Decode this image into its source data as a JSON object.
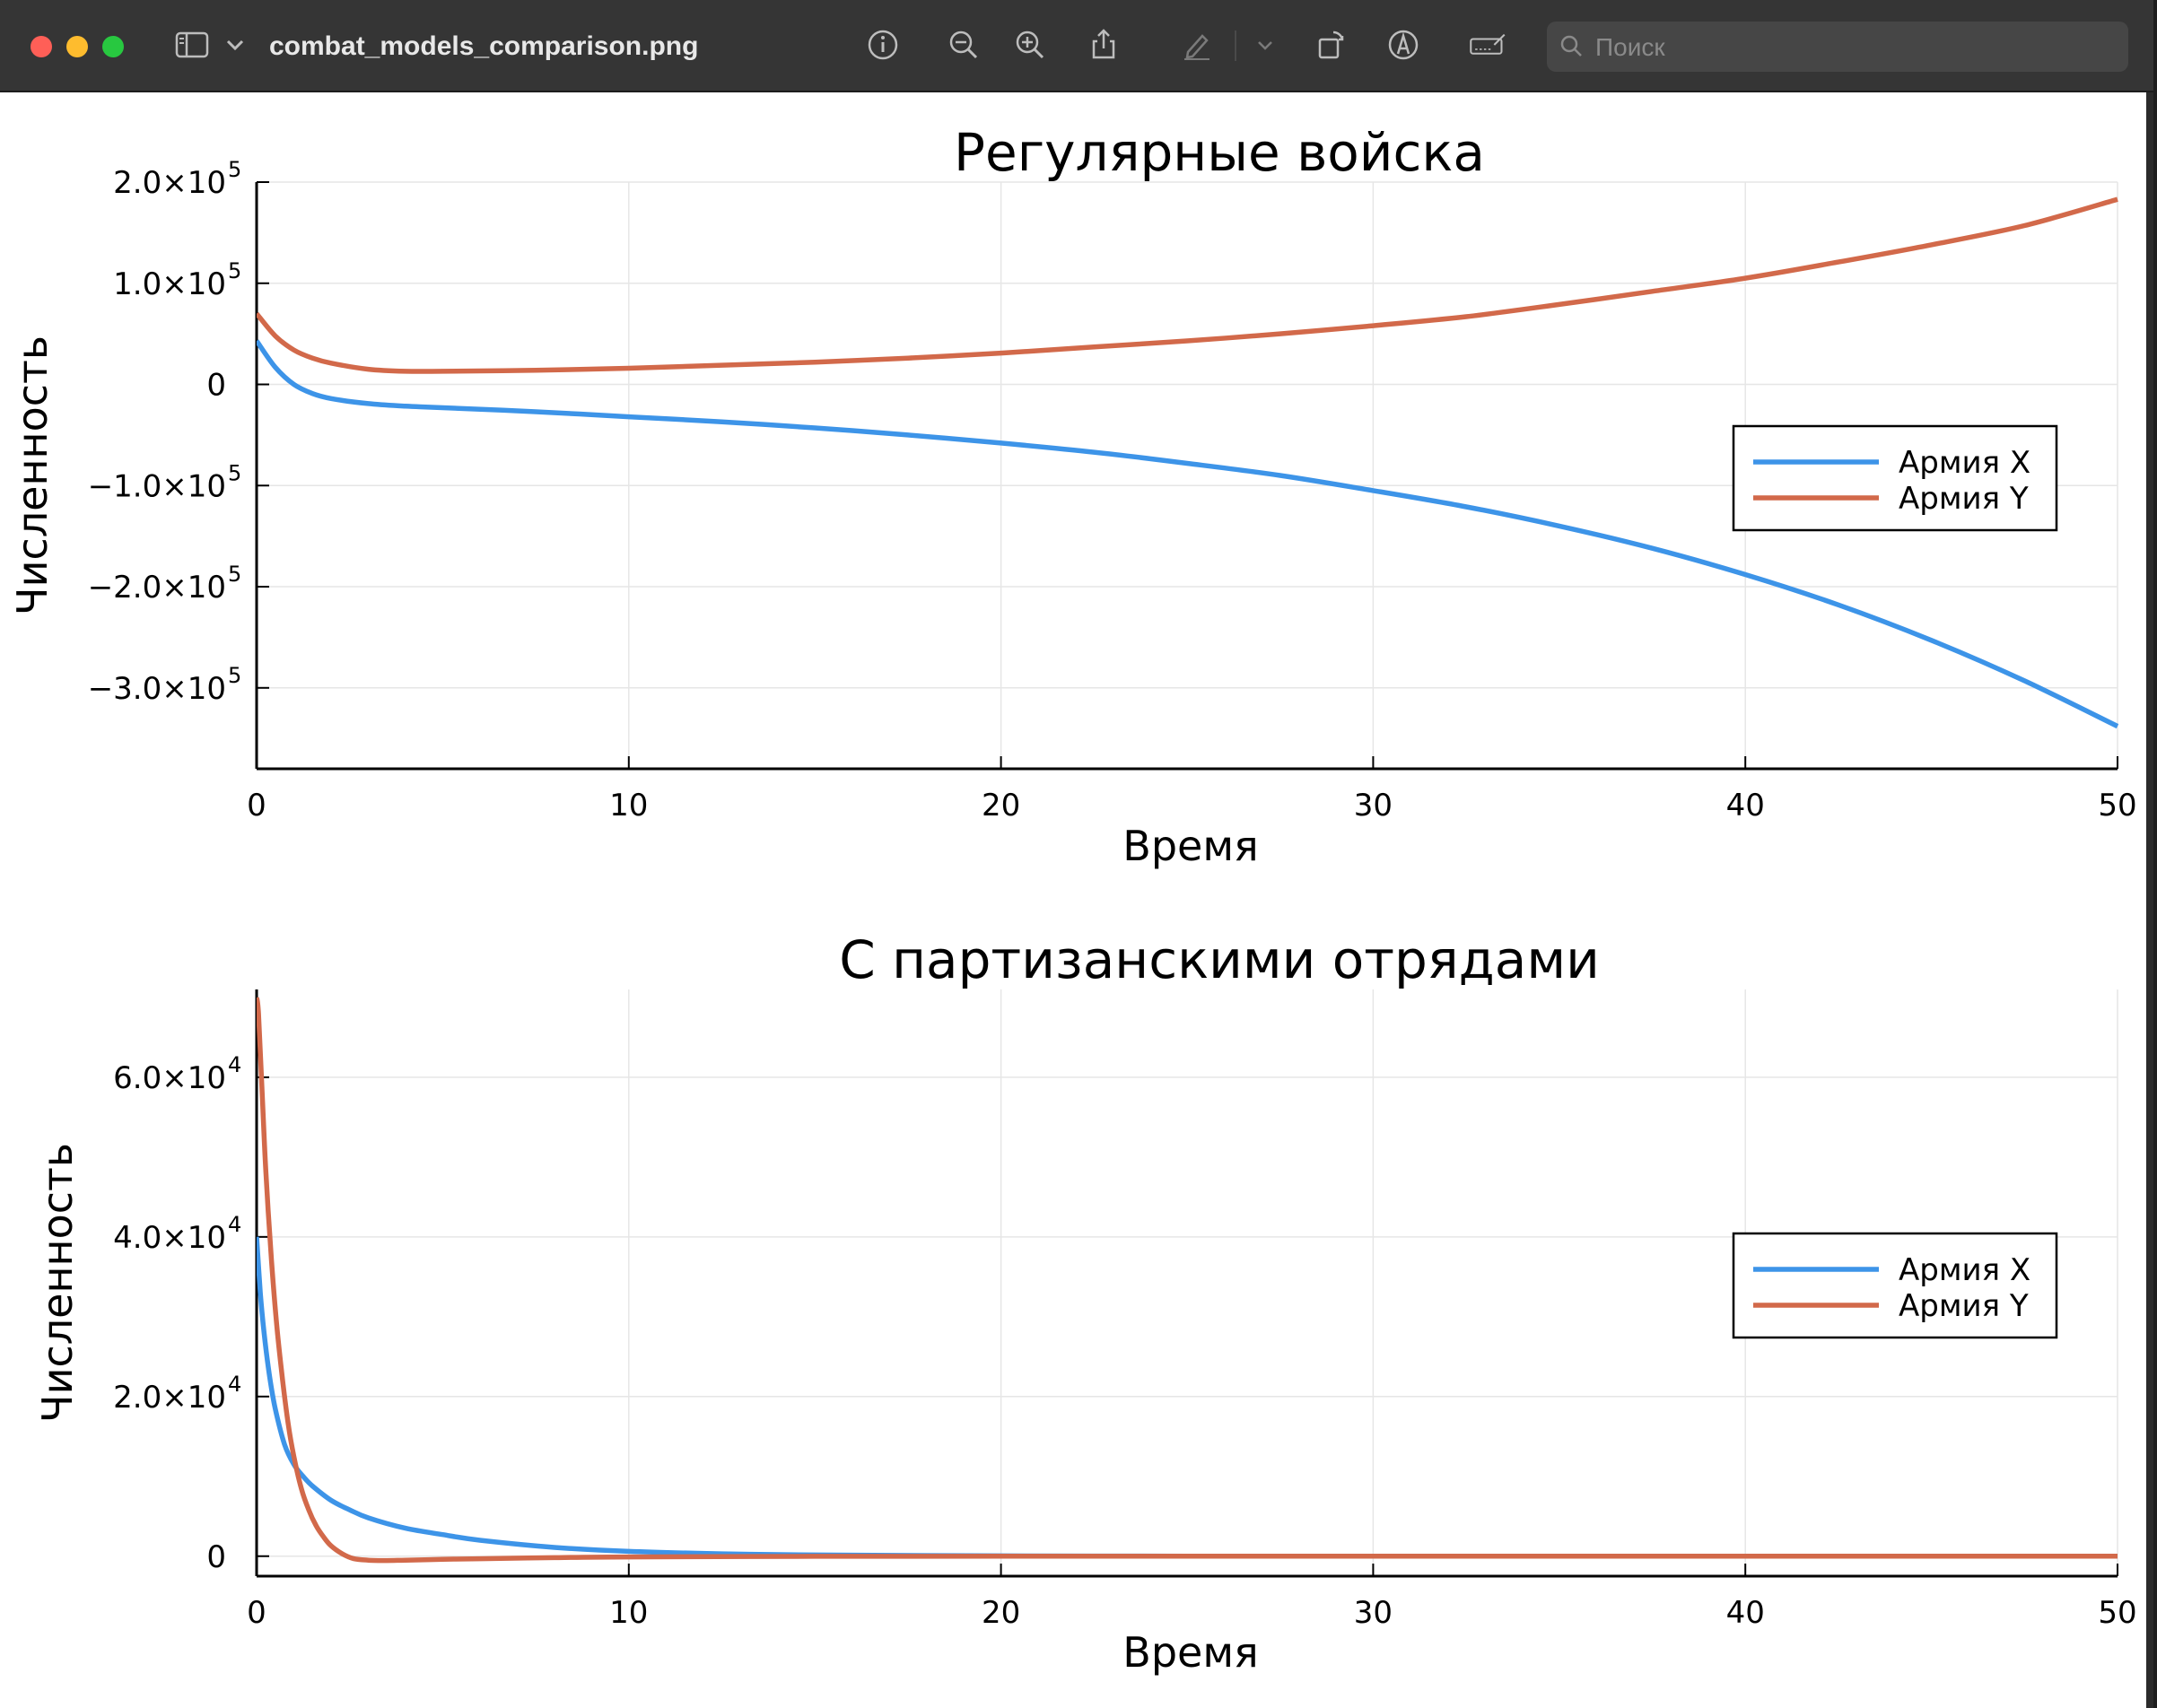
{
  "window": {
    "filename": "combat_models_comparison.png",
    "search_placeholder": "Поиск"
  },
  "toolbar": {
    "icons": [
      "sidebar-icon",
      "chevron-down-icon",
      "info-icon",
      "zoom-out-icon",
      "zoom-in-icon",
      "share-icon",
      "markup-pen-icon",
      "chevron-down-icon",
      "rotate-icon",
      "markup-circle-icon",
      "signature-icon",
      "search-icon"
    ]
  },
  "colors": {
    "army_x": "#3d94e8",
    "army_y": "#d2694a",
    "titlebar": "#353535"
  },
  "chart_data": [
    {
      "type": "line",
      "title": "Регулярные войска",
      "xlabel": "Время",
      "ylabel": "Численность",
      "xlim": [
        0,
        50
      ],
      "ylim": [
        -380000,
        200000
      ],
      "xticks": [
        0,
        10,
        20,
        30,
        40,
        50
      ],
      "xtick_labels": [
        "0",
        "10",
        "20",
        "30",
        "40",
        "50"
      ],
      "yticks": [
        200000,
        100000,
        0,
        -100000,
        -200000,
        -300000
      ],
      "ytick_labels": [
        {
          "mant": "2.0×10",
          "exp": "5"
        },
        {
          "mant": "1.0×10",
          "exp": "5"
        },
        {
          "mant": "0",
          "exp": ""
        },
        {
          "mant": "−1.0×10",
          "exp": "5"
        },
        {
          "mant": "−2.0×10",
          "exp": "5"
        },
        {
          "mant": "−3.0×10",
          "exp": "5"
        }
      ],
      "grid": true,
      "legend_position": "right",
      "series": [
        {
          "name": "Армия X",
          "x": [
            0,
            0.5,
            1,
            1.5,
            2,
            3,
            4,
            5,
            7.5,
            10,
            12.5,
            15,
            17.5,
            20,
            22.5,
            25,
            27.5,
            30,
            32.5,
            35,
            37.5,
            40,
            42.5,
            45,
            47.5,
            50
          ],
          "y": [
            43000,
            17000,
            0,
            -9000,
            -14000,
            -19000,
            -21500,
            -23000,
            -27000,
            -32000,
            -37000,
            -43000,
            -50000,
            -58000,
            -67000,
            -78000,
            -90000,
            -105000,
            -121000,
            -140000,
            -162000,
            -188000,
            -218000,
            -253000,
            -293000,
            -338000
          ]
        },
        {
          "name": "Армия Y",
          "x": [
            0,
            0.5,
            1,
            1.5,
            2,
            3,
            4,
            5,
            7.5,
            10,
            12.5,
            15,
            17.5,
            20,
            22.5,
            25,
            27.5,
            30,
            32.5,
            35,
            37.5,
            40,
            42.5,
            45,
            47.5,
            50
          ],
          "y": [
            70000,
            48000,
            34000,
            26000,
            21000,
            15000,
            13000,
            13000,
            14000,
            16000,
            19000,
            22000,
            26000,
            31000,
            37000,
            43000,
            50000,
            58000,
            67000,
            79000,
            92000,
            105000,
            121000,
            138000,
            157000,
            183000
          ]
        }
      ]
    },
    {
      "type": "line",
      "title": "С партизанскими отрядами",
      "xlabel": "Время",
      "ylabel": "Численность",
      "xlim": [
        0,
        50
      ],
      "ylim": [
        -2500,
        71000
      ],
      "xticks": [
        0,
        10,
        20,
        30,
        40,
        50
      ],
      "xtick_labels": [
        "0",
        "10",
        "20",
        "30",
        "40",
        "50"
      ],
      "yticks": [
        60000,
        40000,
        20000,
        0
      ],
      "ytick_labels": [
        {
          "mant": "6.0×10",
          "exp": "4"
        },
        {
          "mant": "4.0×10",
          "exp": "4"
        },
        {
          "mant": "2.0×10",
          "exp": "4"
        },
        {
          "mant": "0",
          "exp": ""
        }
      ],
      "grid": true,
      "legend_position": "right",
      "series": [
        {
          "name": "Армия X",
          "x": [
            0,
            0.1,
            0.2,
            0.35,
            0.5,
            0.75,
            1,
            1.25,
            1.5,
            2,
            2.5,
            3,
            4,
            5,
            6,
            8,
            10,
            12.5,
            15,
            20,
            25,
            30,
            40,
            50
          ],
          "y": [
            40000,
            33000,
            28000,
            22500,
            18500,
            14000,
            11500,
            10000,
            8800,
            7000,
            5800,
            4800,
            3500,
            2700,
            2000,
            1100,
            600,
            300,
            150,
            40,
            10,
            0,
            0,
            0
          ],
          "series_color": "army_x"
        },
        {
          "name": "Армия Y",
          "x": [
            0,
            0.05,
            0.15,
            0.25,
            0.4,
            0.55,
            0.7,
            0.85,
            1,
            1.2,
            1.4,
            1.6,
            1.8,
            2,
            2.3,
            2.6,
            3,
            3.5,
            4,
            5,
            6,
            8,
            10,
            15,
            20,
            30,
            40,
            50
          ],
          "y": [
            70000,
            68000,
            58000,
            48000,
            37000,
            28500,
            22000,
            16500,
            12500,
            8500,
            5800,
            3800,
            2400,
            1300,
            300,
            -300,
            -500,
            -550,
            -500,
            -400,
            -320,
            -180,
            -90,
            -20,
            0,
            0,
            0,
            0
          ]
        }
      ]
    }
  ]
}
